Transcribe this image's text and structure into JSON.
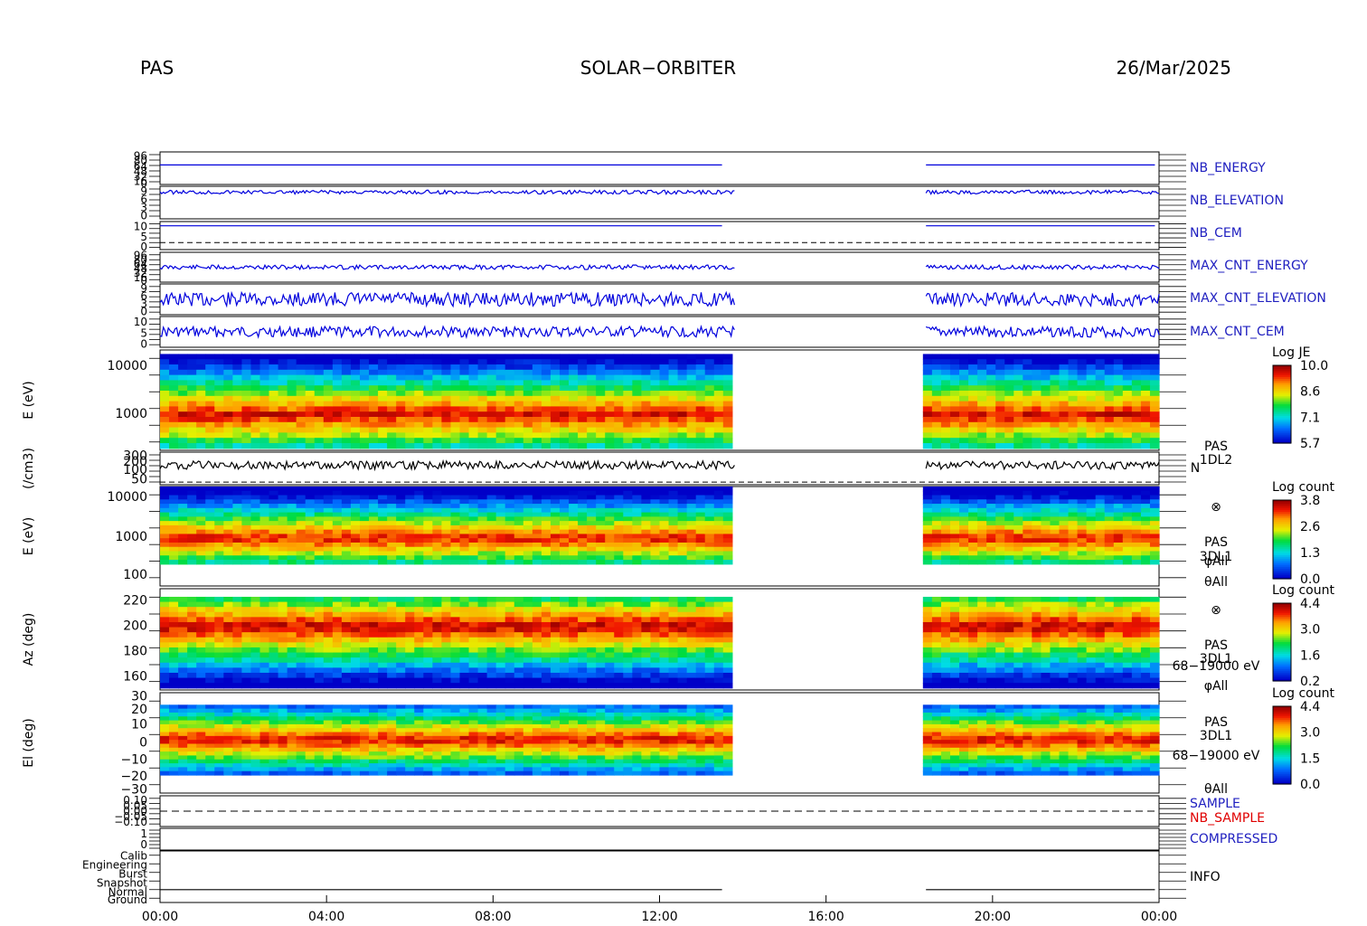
{
  "header": {
    "left": "PAS",
    "center": "SOLAR−ORBITER",
    "right": "26/Mar/2025"
  },
  "colors": {
    "trace_blue": "#0000dd",
    "label_blue": "#2020c0",
    "label_red": "#e00000",
    "axis": "#000000"
  },
  "chart_data": {
    "type": "heatmap",
    "x": {
      "tick_labels": [
        "00:00",
        "04:00",
        "08:00",
        "12:00",
        "16:00",
        "20:00",
        "00:00"
      ],
      "range_hours": [
        0,
        24
      ],
      "data_gaps_hours": [
        [
          13.8,
          18.4
        ]
      ]
    },
    "panels": [
      {
        "name": "NB_ENERGY",
        "type": "line",
        "color": "#2020c0",
        "tick_labels": [
          "96",
          "80",
          "64",
          "48",
          "32",
          "16",
          "0"
        ]
      },
      {
        "name": "NB_ELEVATION",
        "type": "line",
        "color": "#2020c0",
        "tick_labels": [
          "9",
          "6",
          "3",
          "0"
        ]
      },
      {
        "name": "NB_CEM",
        "type": "line",
        "color": "#2020c0",
        "tick_labels": [
          "10",
          "5",
          "0"
        ]
      },
      {
        "name": "MAX_CNT_ENERGY",
        "type": "line",
        "color": "#2020c0",
        "tick_labels": [
          "96",
          "80",
          "64",
          "48",
          "32",
          "16",
          "0"
        ]
      },
      {
        "name": "MAX_CNT_ELEVATION",
        "type": "line",
        "color": "#2020c0",
        "tick_labels": [
          "9",
          "6",
          "3",
          "0"
        ]
      },
      {
        "name": "MAX_CNT_CEM",
        "type": "line",
        "color": "#2020c0",
        "tick_labels": [
          "10",
          "5",
          "0"
        ]
      },
      {
        "name": "E (eV)",
        "type": "heatmap",
        "ylabel": "E (eV)",
        "tick_labels": [
          "10000",
          "1000"
        ],
        "colorbar": {
          "title": "Log JE",
          "ticks": [
            "10.0",
            "8.6",
            "7.1",
            "5.7"
          ],
          "range": [
            5.7,
            10.0
          ]
        }
      },
      {
        "name": "N",
        "type": "line",
        "ylabel": "(/cm3)",
        "tick_labels": [
          "300",
          "200",
          "100",
          "50"
        ],
        "side_labels": [
          "PAS",
          "1DL2",
          "N"
        ]
      },
      {
        "name": "E (eV)",
        "type": "heatmap",
        "ylabel": "E (eV)",
        "tick_labels": [
          "10000",
          "1000",
          "100"
        ],
        "colorbar": {
          "title": "Log count",
          "ticks": [
            "3.8",
            "2.6",
            "1.3",
            "0.0"
          ],
          "range": [
            0.0,
            3.8
          ]
        },
        "side_labels": [
          "⊗",
          "PAS",
          "3DL1",
          "φAll",
          "θAll"
        ]
      },
      {
        "name": "Az (deg)",
        "type": "heatmap",
        "ylabel": "Az (deg)",
        "tick_labels": [
          "220",
          "200",
          "180",
          "160"
        ],
        "colorbar": {
          "title": "Log count",
          "ticks": [
            "4.4",
            "3.0",
            "1.6",
            "0.2"
          ],
          "range": [
            0.2,
            4.4
          ]
        },
        "side_labels": [
          "⊗",
          "PAS",
          "3DL1",
          "68−19000 eV",
          "φAll"
        ]
      },
      {
        "name": "El (deg)",
        "type": "heatmap",
        "ylabel": "El (deg)",
        "tick_labels": [
          "30",
          "20",
          "10",
          "0",
          "−10",
          "−20",
          "−30"
        ],
        "colorbar": {
          "title": "Log count",
          "ticks": [
            "4.4",
            "3.0",
            "1.5",
            "0.0"
          ],
          "range": [
            0.0,
            4.4
          ]
        },
        "side_labels": [
          "PAS",
          "3DL1",
          "68−19000 eV",
          "θAll"
        ]
      },
      {
        "name": "SAMPLE",
        "type": "line",
        "color": "#2020c0",
        "tick_labels": [
          "0.10",
          "0.05",
          "0.00",
          "−0.05",
          "−0.10"
        ]
      },
      {
        "name": "NB_SAMPLE",
        "type": "line",
        "color": "#e00000"
      },
      {
        "name": "COMPRESSED",
        "type": "line",
        "color": "#2020c0",
        "tick_labels": [
          "1",
          "0"
        ]
      },
      {
        "name": "INFO",
        "type": "line",
        "color": "#000000",
        "tick_labels": [
          "Calib",
          "Engineering",
          "Burst",
          "Snapshot",
          "Normal",
          "Ground"
        ]
      }
    ]
  }
}
